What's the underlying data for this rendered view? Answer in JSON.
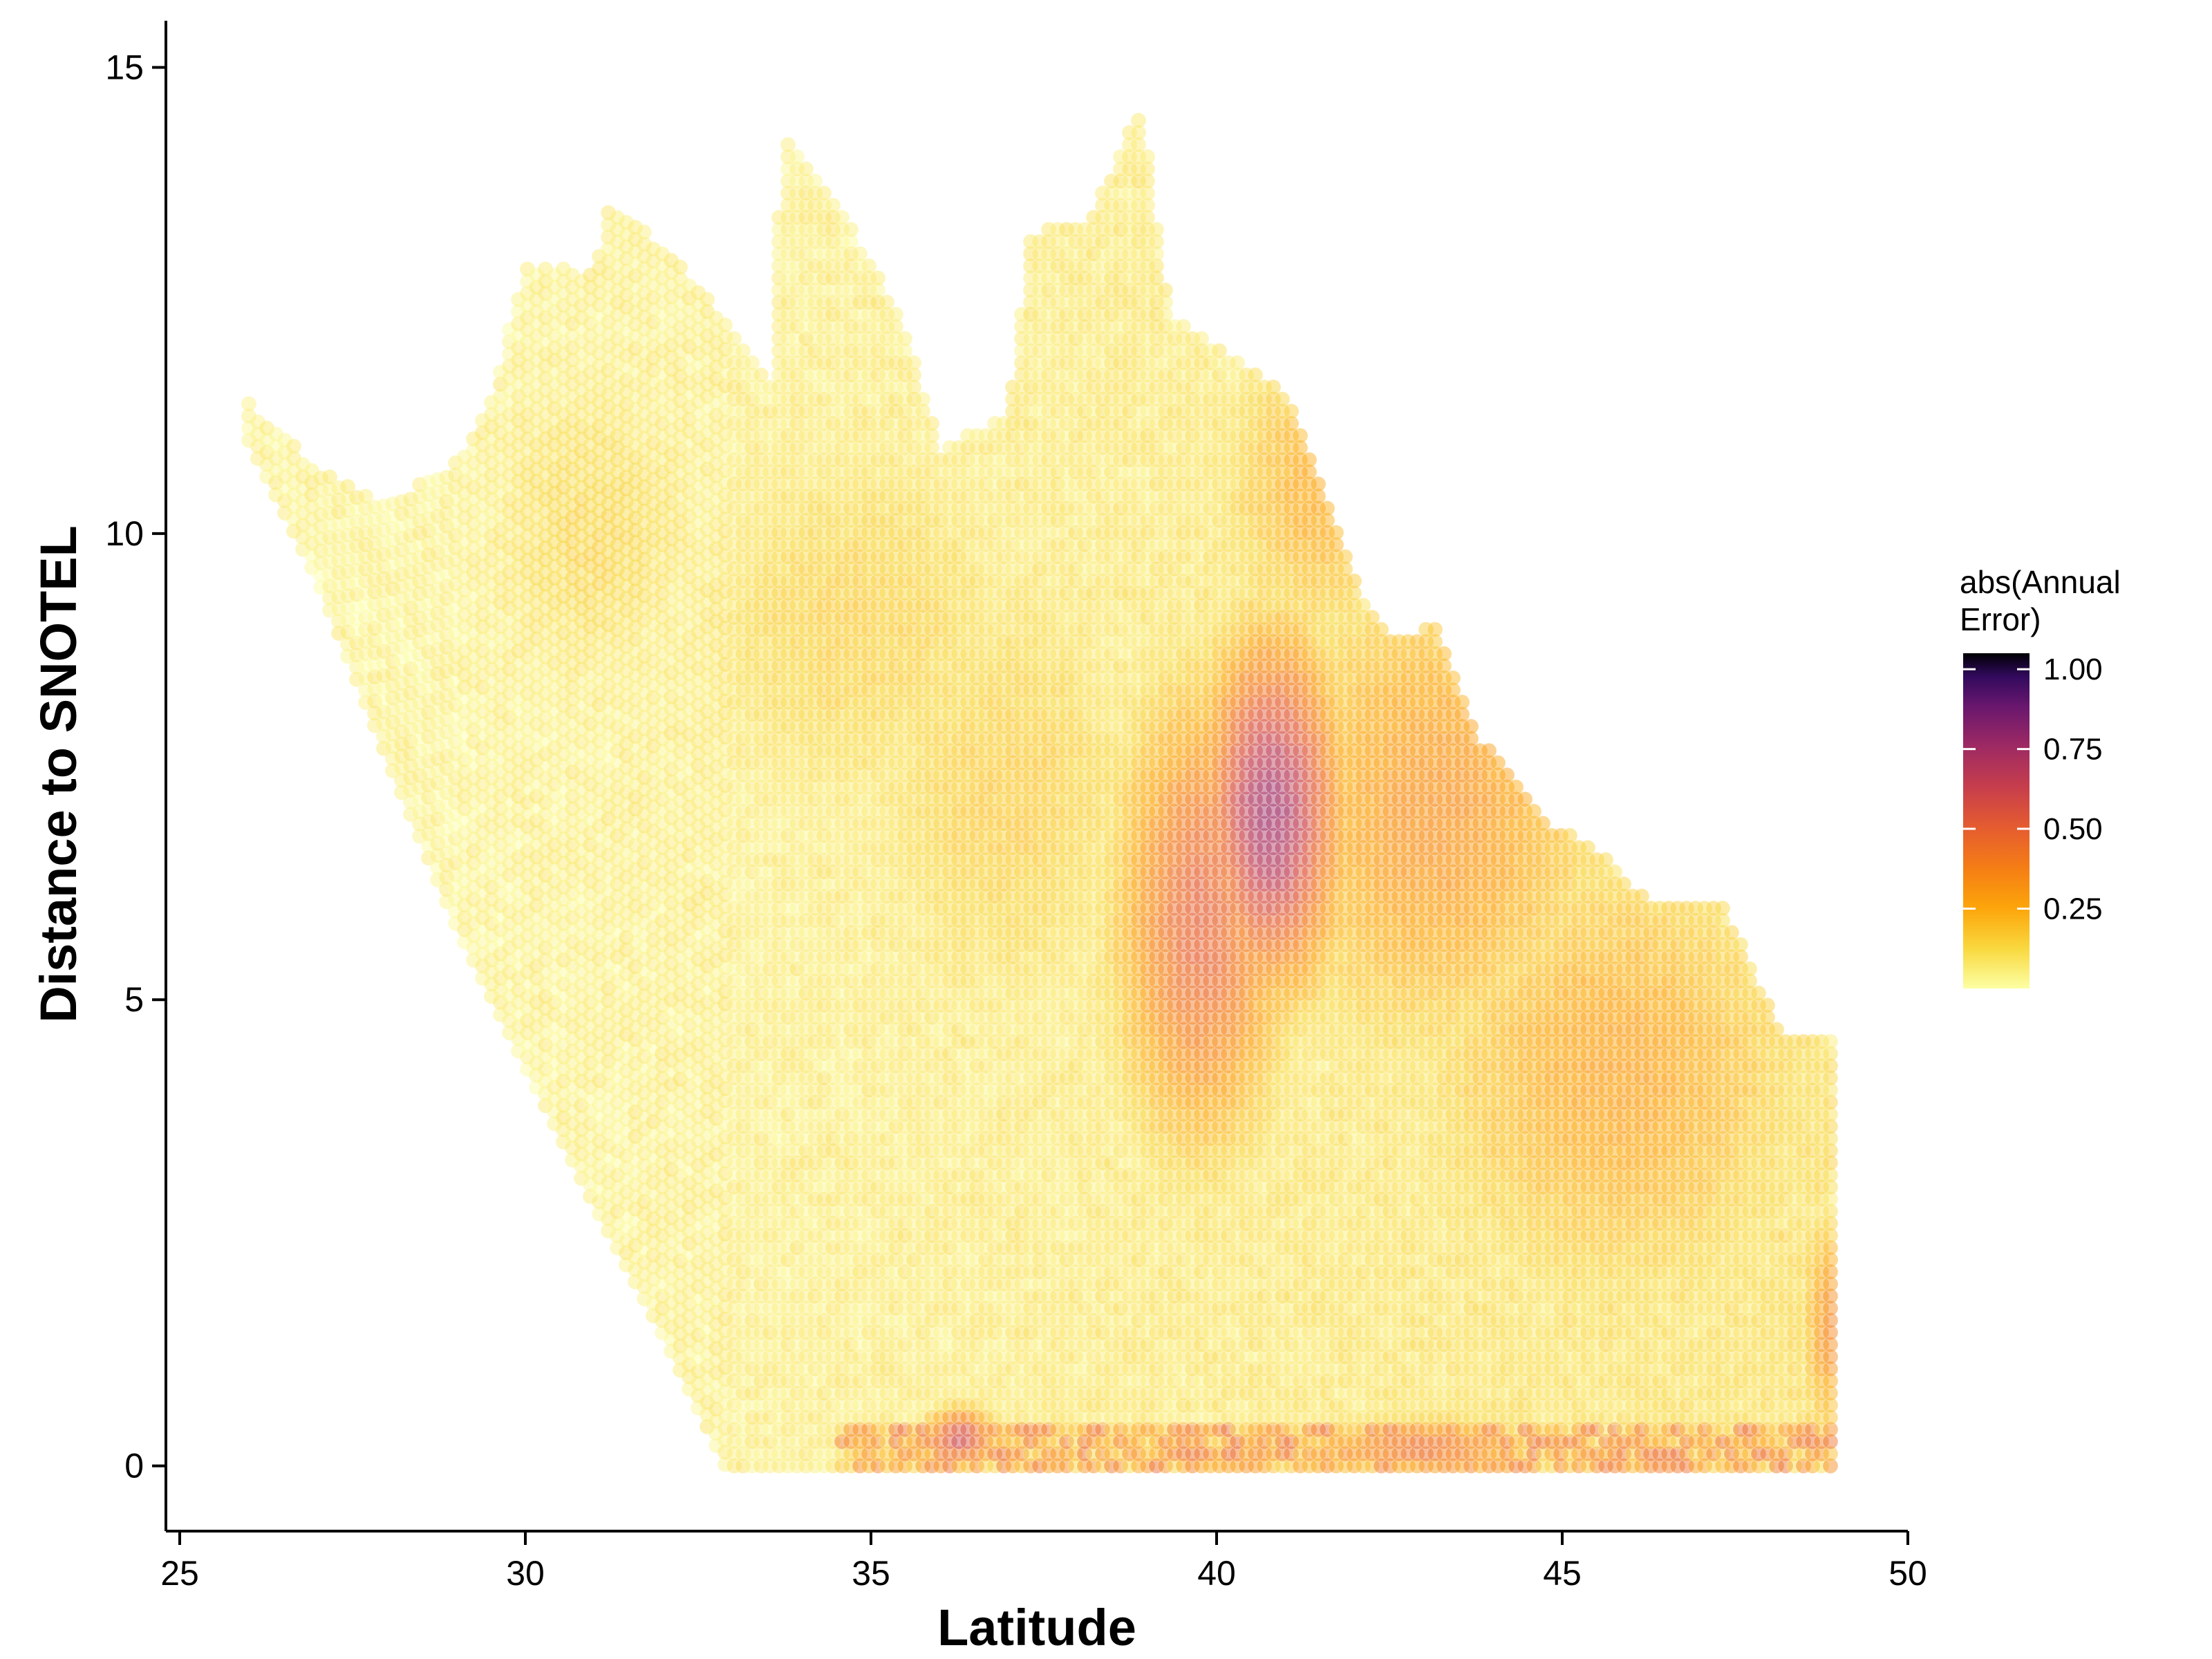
{
  "chart_data": {
    "type": "scatter",
    "title": "",
    "xlabel": "Latitude",
    "ylabel": "Distance to SNOTEL",
    "xlim": [
      24.8,
      50
    ],
    "ylim": [
      -0.7,
      15.5
    ],
    "x_ticks": [
      25,
      30,
      35,
      40,
      45,
      50
    ],
    "y_ticks": [
      0,
      5,
      10,
      15
    ],
    "x_tick_labels": [
      "25",
      "30",
      "35",
      "40",
      "45",
      "50"
    ],
    "y_tick_labels": [
      "0",
      "5",
      "10",
      "15"
    ],
    "grid": false,
    "legend": {
      "placement": "right",
      "title_lines": [
        "abs(Annual",
        "Error)"
      ],
      "range": [
        0,
        1.05
      ],
      "ticks": [
        0.25,
        0.5,
        0.75,
        1.0
      ],
      "tick_labels": [
        "0.25",
        "0.50",
        "0.75",
        "1.00"
      ],
      "colormap": "inferno"
    },
    "point_style": {
      "alpha": 0.45,
      "grid_step_x": 0.13,
      "grid_step_y": 0.13
    },
    "region": {
      "upper_boundary": [
        [
          26.0,
          11.4
        ],
        [
          27.0,
          10.7
        ],
        [
          28.0,
          10.3
        ],
        [
          29.0,
          10.8
        ],
        [
          29.5,
          11.4
        ],
        [
          30.0,
          12.9
        ],
        [
          31.0,
          12.8
        ],
        [
          31.2,
          13.5
        ],
        [
          32.0,
          13.1
        ],
        [
          33.0,
          12.2
        ],
        [
          33.6,
          11.5
        ],
        [
          33.7,
          14.3
        ],
        [
          34.5,
          13.6
        ],
        [
          35.0,
          12.9
        ],
        [
          35.5,
          12.2
        ],
        [
          36.0,
          10.9
        ],
        [
          37.0,
          11.3
        ],
        [
          37.3,
          13.2
        ],
        [
          38.2,
          13.4
        ],
        [
          38.9,
          14.6
        ],
        [
          39.3,
          12.4
        ],
        [
          40.0,
          12.0
        ],
        [
          41.0,
          11.5
        ],
        [
          41.5,
          10.5
        ],
        [
          42.0,
          9.5
        ],
        [
          42.5,
          8.9
        ],
        [
          43.2,
          9.0
        ],
        [
          43.8,
          7.8
        ],
        [
          44.8,
          6.9
        ],
        [
          45.5,
          6.6
        ],
        [
          46.2,
          6.1
        ],
        [
          47.3,
          6.1
        ],
        [
          47.8,
          5.2
        ],
        [
          48.2,
          4.6
        ],
        [
          49.0,
          4.6
        ]
      ],
      "lower_boundary": [
        [
          26.0,
          11.0
        ],
        [
          27.0,
          9.5
        ],
        [
          28.0,
          7.6
        ],
        [
          29.0,
          5.8
        ],
        [
          30.0,
          4.3
        ],
        [
          31.0,
          2.8
        ],
        [
          32.0,
          1.4
        ],
        [
          32.9,
          0.0
        ],
        [
          49.0,
          0.0
        ]
      ]
    },
    "error_hotspots": [
      {
        "x": 40.8,
        "y": 7.0,
        "error": 0.76,
        "spread_x": 1.0,
        "spread_y": 1.8
      },
      {
        "x": 39.8,
        "y": 5.9,
        "error": 0.5,
        "spread_x": 1.2,
        "spread_y": 2.4
      },
      {
        "x": 43.2,
        "y": 7.0,
        "error": 0.33,
        "spread_x": 2.4,
        "spread_y": 2.5
      },
      {
        "x": 45.8,
        "y": 4.2,
        "error": 0.28,
        "spread_x": 2.8,
        "spread_y": 2.4
      },
      {
        "x": 31.0,
        "y": 10.0,
        "error": 0.14,
        "spread_x": 1.6,
        "spread_y": 1.8
      },
      {
        "x": 34.8,
        "y": 9.0,
        "error": 0.16,
        "spread_x": 2.6,
        "spread_y": 2.2
      },
      {
        "x": 37.0,
        "y": 7.2,
        "error": 0.17,
        "spread_x": 2.2,
        "spread_y": 2.6
      },
      {
        "x": 41.5,
        "y": 10.5,
        "error": 0.26,
        "spread_x": 1.4,
        "spread_y": 1.6
      },
      {
        "x": 36.3,
        "y": 0.3,
        "error": 0.62,
        "spread_x": 0.5,
        "spread_y": 0.3
      },
      {
        "x": 43.0,
        "y": 0.2,
        "error": 0.45,
        "spread_x": 1.6,
        "spread_y": 0.3
      },
      {
        "x": 48.9,
        "y": 1.5,
        "error": 0.35,
        "spread_x": 0.4,
        "spread_y": 1.2
      }
    ]
  }
}
